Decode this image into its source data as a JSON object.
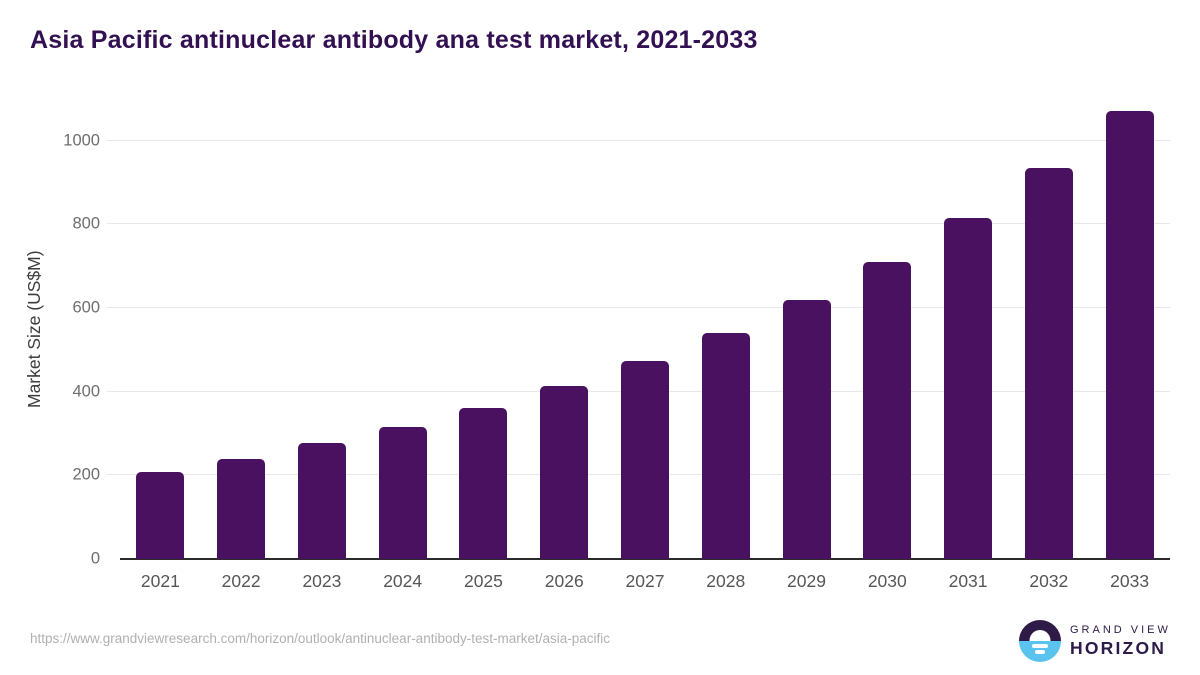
{
  "title": "Asia Pacific antinuclear antibody ana test market, 2021-2033",
  "chart_data": {
    "type": "bar",
    "title": "Asia Pacific antinuclear antibody ana test market, 2021-2033",
    "categories": [
      "2021",
      "2022",
      "2023",
      "2024",
      "2025",
      "2026",
      "2027",
      "2028",
      "2029",
      "2030",
      "2031",
      "2032",
      "2033"
    ],
    "values": [
      207,
      238,
      277,
      316,
      362,
      414,
      473,
      541,
      620,
      711,
      815,
      934,
      1072
    ],
    "xlabel": "",
    "ylabel": "Market Size (US$M)",
    "ylim": [
      0,
      1100
    ],
    "yticks": [
      0,
      200,
      400,
      600,
      800,
      1000
    ],
    "grid": true,
    "legend": "none",
    "bar_color": "#491160"
  },
  "colors": {
    "bar": "#491160",
    "title_text": "#331051",
    "gridline": "#e8e8e8",
    "axis_line": "#2b2b2b",
    "y_tick_text": "#6e6e6e",
    "x_tick_text": "#565656",
    "url_text": "#b0b0b0",
    "logo_purple": "#2d1a47",
    "logo_blue": "#5cc3ef"
  },
  "footer": {
    "source_url": "https://www.grandviewresearch.com/horizon/outlook/antinuclear-antibody-test-market/asia-pacific",
    "logo": {
      "icon": "horizon-sunrise-icon",
      "line1": "GRAND VIEW",
      "line2": "HORIZON"
    }
  }
}
